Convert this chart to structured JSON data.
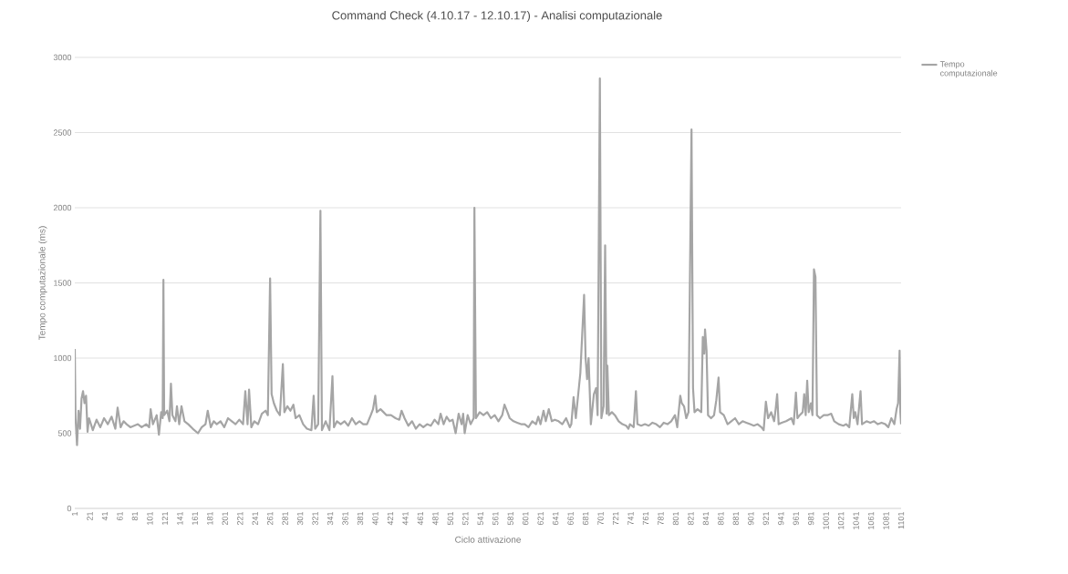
{
  "chart_data": {
    "type": "line",
    "title": "Command Check (4.10.17 - 12.10.17) - Analisi computazionale",
    "xlabel": "Ciclo attivazione",
    "ylabel": "Tempo computazionale (ms)",
    "xlim": [
      1,
      1101
    ],
    "xticks": [
      1,
      21,
      41,
      61,
      81,
      101,
      121,
      141,
      161,
      181,
      201,
      221,
      241,
      261,
      281,
      301,
      321,
      341,
      361,
      381,
      401,
      421,
      441,
      461,
      481,
      501,
      521,
      541,
      561,
      581,
      601,
      621,
      641,
      661,
      681,
      701,
      721,
      741,
      761,
      781,
      801,
      821,
      841,
      861,
      881,
      901,
      921,
      941,
      961,
      981,
      1001,
      1021,
      1041,
      1061,
      1081,
      1101
    ],
    "ylim": [
      0,
      3000
    ],
    "yticks": [
      0,
      500,
      1000,
      1500,
      2000,
      2500,
      3000
    ],
    "grid": "y",
    "legend": "top right",
    "marker": "none",
    "line_style": "solid",
    "x": [
      1,
      2,
      4,
      6,
      8,
      10,
      12,
      14,
      16,
      18,
      20,
      25,
      30,
      35,
      40,
      45,
      50,
      55,
      58,
      62,
      66,
      70,
      75,
      80,
      85,
      90,
      96,
      100,
      102,
      105,
      110,
      113,
      116,
      118,
      119,
      120,
      124,
      127,
      129,
      131,
      135,
      137,
      140,
      143,
      147,
      152,
      158,
      165,
      170,
      175,
      178,
      182,
      186,
      190,
      195,
      200,
      205,
      210,
      215,
      220,
      225,
      228,
      231,
      233,
      236,
      240,
      245,
      250,
      255,
      258,
      261,
      263,
      266,
      270,
      274,
      278,
      280,
      284,
      288,
      292,
      295,
      300,
      305,
      310,
      316,
      319,
      321,
      325,
      328,
      330,
      335,
      340,
      344,
      346,
      350,
      355,
      360,
      365,
      370,
      375,
      380,
      385,
      390,
      395,
      398,
      401,
      403,
      408,
      412,
      416,
      422,
      428,
      433,
      436,
      440,
      445,
      450,
      455,
      460,
      465,
      470,
      475,
      480,
      485,
      488,
      492,
      496,
      500,
      504,
      508,
      512,
      516,
      518,
      520,
      524,
      528,
      532,
      533,
      535,
      540,
      545,
      550,
      555,
      560,
      565,
      570,
      573,
      577,
      580,
      585,
      590,
      595,
      600,
      605,
      610,
      615,
      618,
      621,
      625,
      628,
      632,
      636,
      640,
      645,
      650,
      655,
      660,
      662,
      665,
      668,
      674,
      679,
      681,
      683,
      685,
      688,
      692,
      695,
      697,
      700,
      702,
      705,
      707,
      709,
      710,
      712,
      716,
      720,
      725,
      730,
      735,
      738,
      740,
      745,
      748,
      750,
      755,
      760,
      765,
      770,
      775,
      780,
      785,
      790,
      795,
      800,
      803,
      807,
      809,
      812,
      815,
      818,
      822,
      824,
      826,
      830,
      835,
      837,
      839,
      840,
      842,
      844,
      848,
      852,
      855,
      858,
      860,
      865,
      870,
      875,
      880,
      885,
      890,
      895,
      900,
      905,
      910,
      915,
      918,
      921,
      924,
      928,
      932,
      934,
      936,
      938,
      942,
      948,
      955,
      958,
      961,
      963,
      966,
      970,
      972,
      974,
      976,
      978,
      981,
      983,
      985,
      987,
      989,
      993,
      998,
      1003,
      1008,
      1012,
      1018,
      1024,
      1028,
      1032,
      1036,
      1038,
      1040,
      1043,
      1047,
      1049,
      1055,
      1060,
      1065,
      1070,
      1075,
      1080,
      1084,
      1088,
      1092,
      1095,
      1097,
      1099,
      1100,
      1101
    ],
    "series": [
      {
        "name": "Tempo computazionale",
        "color": "#a5a5a5",
        "values": [
          1060,
          600,
          420,
          650,
          530,
          730,
          780,
          700,
          750,
          510,
          600,
          520,
          590,
          540,
          600,
          560,
          610,
          530,
          670,
          540,
          580,
          560,
          540,
          550,
          560,
          540,
          560,
          540,
          660,
          560,
          620,
          490,
          640,
          600,
          1520,
          620,
          650,
          580,
          830,
          620,
          580,
          680,
          560,
          680,
          580,
          560,
          530,
          500,
          540,
          560,
          650,
          540,
          580,
          560,
          580,
          540,
          600,
          580,
          560,
          590,
          560,
          780,
          560,
          790,
          540,
          580,
          560,
          630,
          650,
          620,
          1530,
          760,
          700,
          650,
          620,
          960,
          640,
          680,
          650,
          690,
          600,
          620,
          560,
          530,
          520,
          750,
          530,
          560,
          1980,
          520,
          580,
          520,
          880,
          540,
          580,
          560,
          580,
          550,
          600,
          560,
          580,
          560,
          560,
          620,
          660,
          750,
          640,
          660,
          640,
          620,
          620,
          600,
          590,
          650,
          600,
          550,
          580,
          530,
          560,
          540,
          560,
          550,
          590,
          560,
          630,
          560,
          610,
          580,
          590,
          500,
          630,
          560,
          630,
          500,
          620,
          560,
          600,
          2000,
          600,
          640,
          620,
          640,
          600,
          620,
          580,
          620,
          690,
          640,
          600,
          580,
          570,
          560,
          560,
          540,
          580,
          560,
          610,
          560,
          650,
          580,
          660,
          580,
          590,
          580,
          560,
          600,
          540,
          560,
          740,
          600,
          900,
          1420,
          1000,
          860,
          1000,
          560,
          760,
          800,
          620,
          2860,
          600,
          680,
          1750,
          630,
          950,
          620,
          640,
          620,
          580,
          560,
          550,
          530,
          560,
          540,
          780,
          560,
          550,
          560,
          550,
          570,
          560,
          540,
          570,
          560,
          580,
          620,
          540,
          750,
          700,
          680,
          600,
          640,
          2520,
          800,
          640,
          660,
          640,
          1140,
          1030,
          1190,
          1050,
          620,
          600,
          620,
          720,
          870,
          640,
          620,
          560,
          580,
          600,
          560,
          580,
          570,
          560,
          550,
          560,
          540,
          520,
          710,
          600,
          640,
          580,
          660,
          760,
          560,
          570,
          580,
          600,
          560,
          770,
          600,
          620,
          640,
          760,
          620,
          850,
          640,
          700,
          620,
          1590,
          1540,
          620,
          600,
          620,
          620,
          630,
          580,
          560,
          550,
          560,
          540,
          760,
          600,
          640,
          560,
          780,
          560,
          580,
          570,
          580,
          560,
          570,
          560,
          540,
          600,
          560,
          660,
          700,
          1050,
          640,
          560
        ]
      }
    ]
  }
}
